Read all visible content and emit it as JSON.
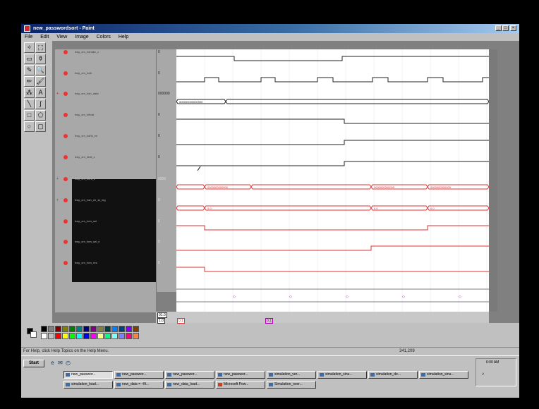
{
  "window": {
    "title": "new_passwordsort - Paint",
    "minimize": "_",
    "maximize": "□",
    "close": "×"
  },
  "menu": [
    "File",
    "Edit",
    "View",
    "Image",
    "Colors",
    "Help"
  ],
  "tools": [
    "free-select-icon",
    "rect-select-icon",
    "eraser-icon",
    "fill-icon",
    "pick-color-icon",
    "magnifier-icon",
    "pencil-icon",
    "brush-icon",
    "airbrush-icon",
    "text-icon",
    "line-icon",
    "curve-icon",
    "rectangle-icon",
    "polygon-icon",
    "ellipse-icon",
    "rounded-rect-icon"
  ],
  "tool_glyphs": [
    "✧",
    "⬚",
    "▭",
    "⚱",
    "✎",
    "🔍",
    "✏",
    "🖌",
    "⁂",
    "A",
    "╲",
    "∫",
    "□",
    "⬠",
    "○",
    "▢"
  ],
  "signals": [
    {
      "name": "hwy_crn_hshake_c",
      "value": "0",
      "group": false,
      "dark": false
    },
    {
      "name": "hwy_crn_hclk",
      "value": "0",
      "group": false,
      "dark": false
    },
    {
      "name": "hwy_crn_hsh_data",
      "value": "000000",
      "group": true,
      "dark": false
    },
    {
      "name": "hwy_crn_hfloat",
      "value": "0",
      "group": false,
      "dark": false
    },
    {
      "name": "hwy_crn_hshk_en",
      "value": "0",
      "group": false,
      "dark": false
    },
    {
      "name": "hwy_crn_hinit_c",
      "value": "0",
      "group": false,
      "dark": false
    },
    {
      "name": "hwy_crn_hcnt_c",
      "value": "0000",
      "group": true,
      "dark": true
    },
    {
      "name": "hwy_crn_hsh_ctr_st_reg",
      "value": "0",
      "group": true,
      "dark": true
    },
    {
      "name": "hwy_crn_hen_sel",
      "value": "0",
      "group": false,
      "dark": true
    },
    {
      "name": "hwy_crn_hen_sel_n",
      "value": "0",
      "group": false,
      "dark": true
    },
    {
      "name": "hwy_crn_hen_res",
      "value": "0",
      "group": false,
      "dark": true
    }
  ],
  "cursors": {
    "c1": "01.0",
    "c2": "1.0",
    "c3": "0.1",
    "c4": "0.1"
  },
  "palette": {
    "foreground": "#000000",
    "background": "#ffffff",
    "colors": [
      "#000000",
      "#808080",
      "#800000",
      "#808000",
      "#008000",
      "#008080",
      "#000080",
      "#800080",
      "#808040",
      "#004040",
      "#0080ff",
      "#004080",
      "#8000ff",
      "#804000",
      "#ffffff",
      "#c0c0c0",
      "#ff0000",
      "#ffff00",
      "#00ff00",
      "#00ffff",
      "#0000ff",
      "#ff00ff",
      "#ffff80",
      "#00ff80",
      "#80ffff",
      "#8080ff",
      "#ff0080",
      "#ff8040"
    ]
  },
  "status": {
    "help": "For Help, click Help Topics on the Help Menu.",
    "coords": "341,209"
  },
  "taskbar": {
    "start": "Start",
    "quicklaunch": [
      "ie-icon",
      "outlook-icon",
      "desktop-icon"
    ],
    "row1": [
      "new_passwor...",
      "new_passwor...",
      "new_passwor...",
      "new_passwor...",
      "simulation_ver...",
      "simulation_sinu...",
      "simulation_de...",
      "simulation_sinu..."
    ],
    "row2": [
      "simulation_load...",
      "new_data = ~lfi...",
      "new_data_load...",
      "Microsoft Pow...",
      "Simulation_over..."
    ],
    "clock": "6:00 AM"
  },
  "colors": {
    "waveform_black": "#222222",
    "waveform_red": "#e03030",
    "dark_panel": "#111111"
  }
}
